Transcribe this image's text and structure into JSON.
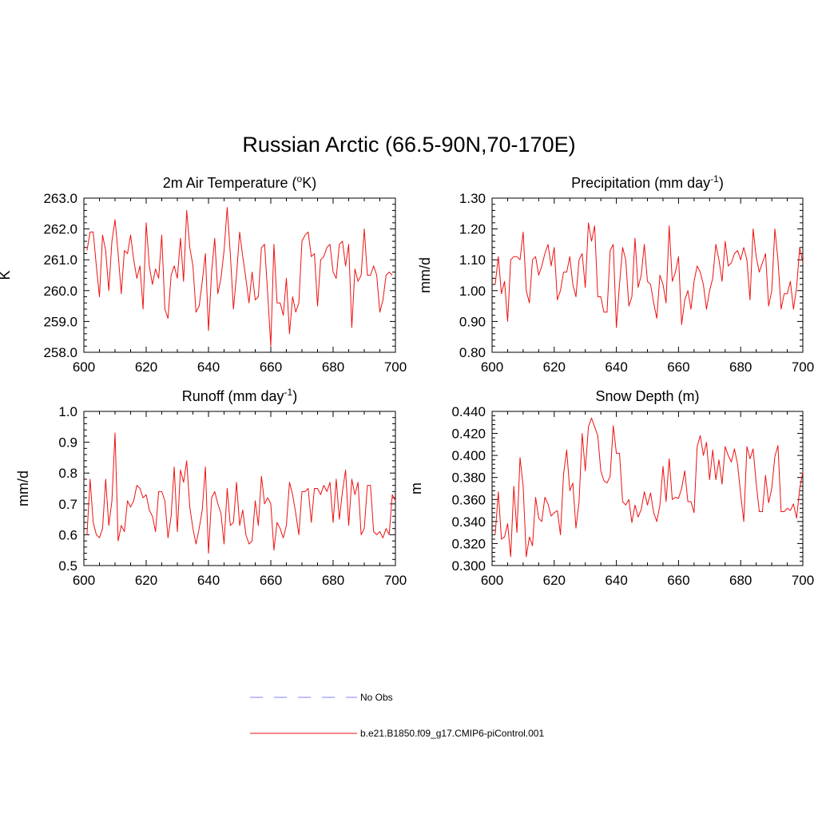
{
  "title": "Russian Arctic (66.5-90N,70-170E)",
  "colors": {
    "model": "#ee1111",
    "obs": "#9999ff",
    "axis": "#000000"
  },
  "legend": {
    "obs_label": "No Obs",
    "model_label": "b.e21.B1850.f09_g17.CMIP6-piControl.001"
  },
  "chart_data": [
    {
      "type": "line",
      "title_base": "2m Air Temperature (",
      "title_sup": "o",
      "title_end": "K)",
      "ylabel": "K",
      "xlim": [
        600,
        700
      ],
      "ylim": [
        258.0,
        263.0
      ],
      "xticks": [
        "600",
        "620",
        "640",
        "660",
        "680",
        "700"
      ],
      "yticks": [
        "258.0",
        "259.0",
        "260.0",
        "261.0",
        "262.0",
        "263.0"
      ],
      "x_start": 601,
      "values": [
        261.3,
        261.9,
        261.9,
        260.8,
        259.8,
        261.8,
        261.3,
        260.0,
        261.6,
        262.3,
        261.2,
        259.9,
        261.3,
        261.2,
        261.8,
        261.0,
        260.4,
        260.8,
        259.4,
        262.2,
        260.8,
        260.2,
        260.7,
        260.4,
        261.8,
        259.4,
        259.1,
        260.5,
        260.8,
        260.4,
        261.7,
        260.3,
        262.6,
        261.4,
        260.8,
        259.3,
        259.5,
        260.3,
        261.2,
        258.7,
        260.6,
        261.7,
        259.9,
        260.4,
        261.3,
        262.7,
        261.2,
        259.4,
        260.5,
        261.9,
        261.1,
        260.4,
        259.6,
        260.6,
        259.7,
        259.8,
        261.4,
        261.5,
        259.9,
        258.2,
        261.5,
        259.6,
        259.6,
        259.2,
        260.4,
        258.6,
        259.8,
        259.3,
        259.6,
        261.6,
        261.8,
        261.9,
        261.1,
        261.2,
        259.5,
        261.0,
        261.1,
        261.4,
        261.5,
        260.6,
        260.4,
        261.5,
        261.6,
        260.8,
        261.5,
        258.8,
        260.7,
        260.3,
        260.5,
        262.0,
        260.5,
        260.5,
        260.8,
        260.5,
        259.3,
        259.7,
        260.5,
        260.6,
        260.5
      ]
    },
    {
      "type": "line",
      "title_base": "Precipitation (mm day",
      "title_sup": "-1",
      "title_end": ")",
      "ylabel": "mm/d",
      "xlim": [
        600,
        700
      ],
      "ylim": [
        0.8,
        1.3
      ],
      "xticks": [
        "600",
        "620",
        "640",
        "660",
        "680",
        "700"
      ],
      "yticks": [
        "0.80",
        "0.90",
        "1.00",
        "1.10",
        "1.20",
        "1.30"
      ],
      "x_start": 601,
      "values": [
        1.02,
        1.11,
        0.99,
        1.03,
        0.9,
        1.1,
        1.11,
        1.11,
        1.1,
        1.19,
        1.0,
        0.96,
        1.1,
        1.11,
        1.05,
        1.08,
        1.12,
        1.15,
        1.08,
        1.14,
        0.97,
        1.0,
        1.06,
        1.06,
        1.11,
        1.02,
        0.98,
        1.1,
        1.12,
        1.01,
        1.22,
        1.16,
        1.21,
        0.98,
        0.98,
        0.93,
        0.93,
        1.13,
        1.15,
        0.88,
        1.02,
        1.14,
        1.1,
        0.95,
        0.98,
        1.17,
        1.01,
        1.05,
        1.15,
        1.03,
        1.02,
        0.96,
        0.91,
        1.05,
        1.02,
        0.96,
        1.21,
        1.03,
        1.06,
        1.11,
        0.89,
        0.97,
        1.0,
        0.94,
        1.03,
        1.08,
        1.06,
        1.02,
        0.94,
        1.0,
        1.04,
        1.15,
        1.1,
        1.03,
        1.16,
        1.08,
        1.09,
        1.12,
        1.13,
        1.1,
        1.14,
        1.1,
        0.97,
        1.2,
        1.11,
        1.06,
        1.09,
        1.12,
        0.95,
        1.0,
        1.2,
        1.1,
        0.94,
        0.99,
        0.99,
        1.03,
        0.94,
        1.01,
        1.14,
        1.09
      ]
    },
    {
      "type": "line",
      "title_base": "Runoff (mm day",
      "title_sup": "-1",
      "title_end": ")",
      "ylabel": "mm/d",
      "xlim": [
        600,
        700
      ],
      "ylim": [
        0.5,
        1.0
      ],
      "xticks": [
        "600",
        "620",
        "640",
        "660",
        "680",
        "700"
      ],
      "yticks": [
        "0.5",
        "0.6",
        "0.7",
        "0.8",
        "0.9",
        "1.0"
      ],
      "x_start": 601,
      "values": [
        0.6,
        0.78,
        0.64,
        0.6,
        0.59,
        0.62,
        0.78,
        0.63,
        0.71,
        0.93,
        0.58,
        0.63,
        0.61,
        0.71,
        0.69,
        0.71,
        0.76,
        0.75,
        0.72,
        0.73,
        0.68,
        0.66,
        0.61,
        0.74,
        0.74,
        0.71,
        0.59,
        0.66,
        0.82,
        0.61,
        0.81,
        0.77,
        0.84,
        0.69,
        0.62,
        0.57,
        0.62,
        0.68,
        0.82,
        0.54,
        0.72,
        0.74,
        0.7,
        0.67,
        0.57,
        0.75,
        0.63,
        0.64,
        0.77,
        0.63,
        0.68,
        0.6,
        0.57,
        0.58,
        0.71,
        0.63,
        0.79,
        0.7,
        0.72,
        0.7,
        0.55,
        0.64,
        0.62,
        0.59,
        0.63,
        0.77,
        0.73,
        0.67,
        0.6,
        0.74,
        0.74,
        0.75,
        0.64,
        0.75,
        0.75,
        0.73,
        0.76,
        0.74,
        0.77,
        0.64,
        0.78,
        0.65,
        0.74,
        0.81,
        0.63,
        0.78,
        0.73,
        0.77,
        0.6,
        0.62,
        0.76,
        0.76,
        0.61,
        0.6,
        0.61,
        0.59,
        0.62,
        0.6,
        0.73,
        0.71
      ]
    },
    {
      "type": "line",
      "title_base": "Snow Depth (m)",
      "title_sup": "",
      "title_end": "",
      "ylabel": "m",
      "xlim": [
        600,
        700
      ],
      "ylim": [
        0.3,
        0.44
      ],
      "xticks": [
        "600",
        "620",
        "640",
        "660",
        "680",
        "700"
      ],
      "yticks": [
        "0.300",
        "0.320",
        "0.340",
        "0.360",
        "0.380",
        "0.400",
        "0.420",
        "0.440"
      ],
      "x_start": 601,
      "values": [
        0.328,
        0.367,
        0.324,
        0.326,
        0.338,
        0.308,
        0.372,
        0.33,
        0.398,
        0.372,
        0.308,
        0.326,
        0.318,
        0.362,
        0.343,
        0.34,
        0.362,
        0.356,
        0.345,
        0.348,
        0.35,
        0.328,
        0.383,
        0.405,
        0.368,
        0.375,
        0.334,
        0.358,
        0.42,
        0.386,
        0.426,
        0.434,
        0.426,
        0.418,
        0.386,
        0.377,
        0.375,
        0.381,
        0.427,
        0.402,
        0.402,
        0.358,
        0.355,
        0.36,
        0.339,
        0.355,
        0.344,
        0.351,
        0.367,
        0.355,
        0.366,
        0.348,
        0.34,
        0.355,
        0.39,
        0.358,
        0.397,
        0.36,
        0.362,
        0.361,
        0.37,
        0.386,
        0.358,
        0.358,
        0.348,
        0.408,
        0.418,
        0.4,
        0.412,
        0.378,
        0.405,
        0.378,
        0.396,
        0.374,
        0.408,
        0.4,
        0.394,
        0.406,
        0.392,
        0.365,
        0.34,
        0.408,
        0.397,
        0.406,
        0.375,
        0.349,
        0.349,
        0.382,
        0.357,
        0.37,
        0.399,
        0.409,
        0.349,
        0.349,
        0.352,
        0.35,
        0.356,
        0.343,
        0.37,
        0.385
      ]
    }
  ]
}
